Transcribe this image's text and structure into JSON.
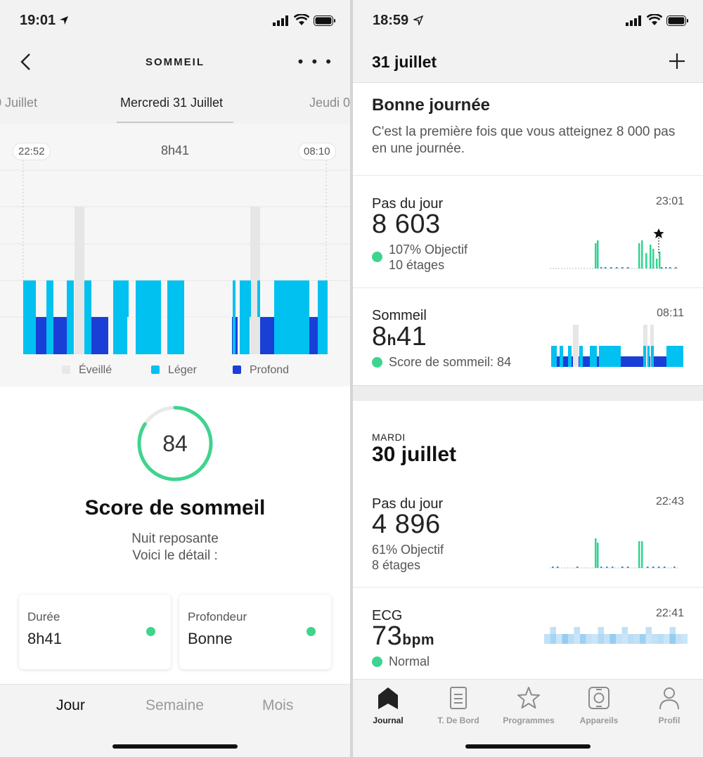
{
  "left": {
    "status": {
      "time": "19:01"
    },
    "nav": {
      "title": "SOMMEIL"
    },
    "days": {
      "prev": "0 Juillet",
      "current": "Mercredi 31 Juillet",
      "next": "Jeudi 0"
    },
    "chart_data": {
      "type": "bar",
      "start_label": "22:52",
      "end_label": "08:10",
      "duration_label": "8h41",
      "legend": [
        {
          "name": "Éveillé",
          "color": "#e8e8e8"
        },
        {
          "name": "Léger",
          "color": "#00c1f0"
        },
        {
          "name": "Profond",
          "color": "#1a3fd6"
        }
      ]
    },
    "score": {
      "value": "84",
      "percent": 84,
      "title": "Score de sommeil",
      "subtitle1": "Nuit reposante",
      "subtitle2": "Voici le détail :"
    },
    "cards": [
      {
        "label": "Durée",
        "value": "8h41"
      },
      {
        "label": "Profondeur",
        "value": "Bonne"
      }
    ],
    "tabs": [
      "Jour",
      "Semaine",
      "Mois"
    ]
  },
  "right": {
    "status": {
      "time": "18:59"
    },
    "header": {
      "date": "31 juillet"
    },
    "greeting": {
      "title": "Bonne journée",
      "message": "C'est la première fois que vous atteignez 8 000 pas en une journée."
    },
    "steps_today": {
      "title": "Pas du jour",
      "value": "8 603",
      "time": "23:01",
      "goal": "107% Objectif",
      "floors": "10 étages"
    },
    "sleep_today": {
      "title": "Sommeil",
      "value_h": "8",
      "value_sep": "h",
      "value_m": "41",
      "time": "08:11",
      "score_text": "Score de sommeil: 84"
    },
    "prev_day": {
      "weekday": "MARDI",
      "date": "30 juillet"
    },
    "steps_prev": {
      "title": "Pas du jour",
      "value": "4 896",
      "time": "22:43",
      "goal": "61% Objectif",
      "floors": "8 étages"
    },
    "ecg": {
      "title": "ECG",
      "value": "73",
      "unit": "bpm",
      "time": "22:41",
      "status": "Normal"
    },
    "tabs": [
      {
        "label": "Journal",
        "icon": "journal-icon"
      },
      {
        "label": "T. De Bord",
        "icon": "dashboard-icon"
      },
      {
        "label": "Programmes",
        "icon": "star-icon"
      },
      {
        "label": "Appareils",
        "icon": "watch-icon"
      },
      {
        "label": "Profil",
        "icon": "profile-icon"
      }
    ]
  }
}
